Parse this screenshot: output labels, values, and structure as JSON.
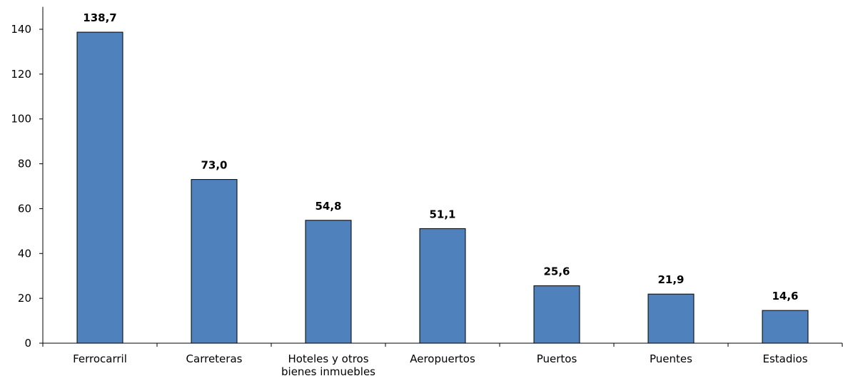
{
  "chart_data": {
    "type": "bar",
    "categories": [
      [
        "Ferrocarril"
      ],
      [
        "Carreteras"
      ],
      [
        "Hoteles y otros",
        "bienes inmuebles"
      ],
      [
        "Aeropuertos"
      ],
      [
        "Puertos"
      ],
      [
        "Puentes"
      ],
      [
        "Estadios"
      ]
    ],
    "values": [
      138.7,
      73.0,
      54.8,
      51.1,
      25.6,
      21.9,
      14.6
    ],
    "data_labels": [
      "138,7",
      "73,0",
      "54,8",
      "51,1",
      "25,6",
      "21,9",
      "14,6"
    ],
    "yticks": [
      0,
      20,
      40,
      60,
      80,
      100,
      120,
      140
    ],
    "ylim": [
      0,
      150
    ],
    "title": "",
    "xlabel": "",
    "ylabel": "",
    "grid": false,
    "legend": "none",
    "colors": {
      "bar_fill": "#4F81BD",
      "bar_stroke": "#000000",
      "axis": "#000000"
    }
  }
}
